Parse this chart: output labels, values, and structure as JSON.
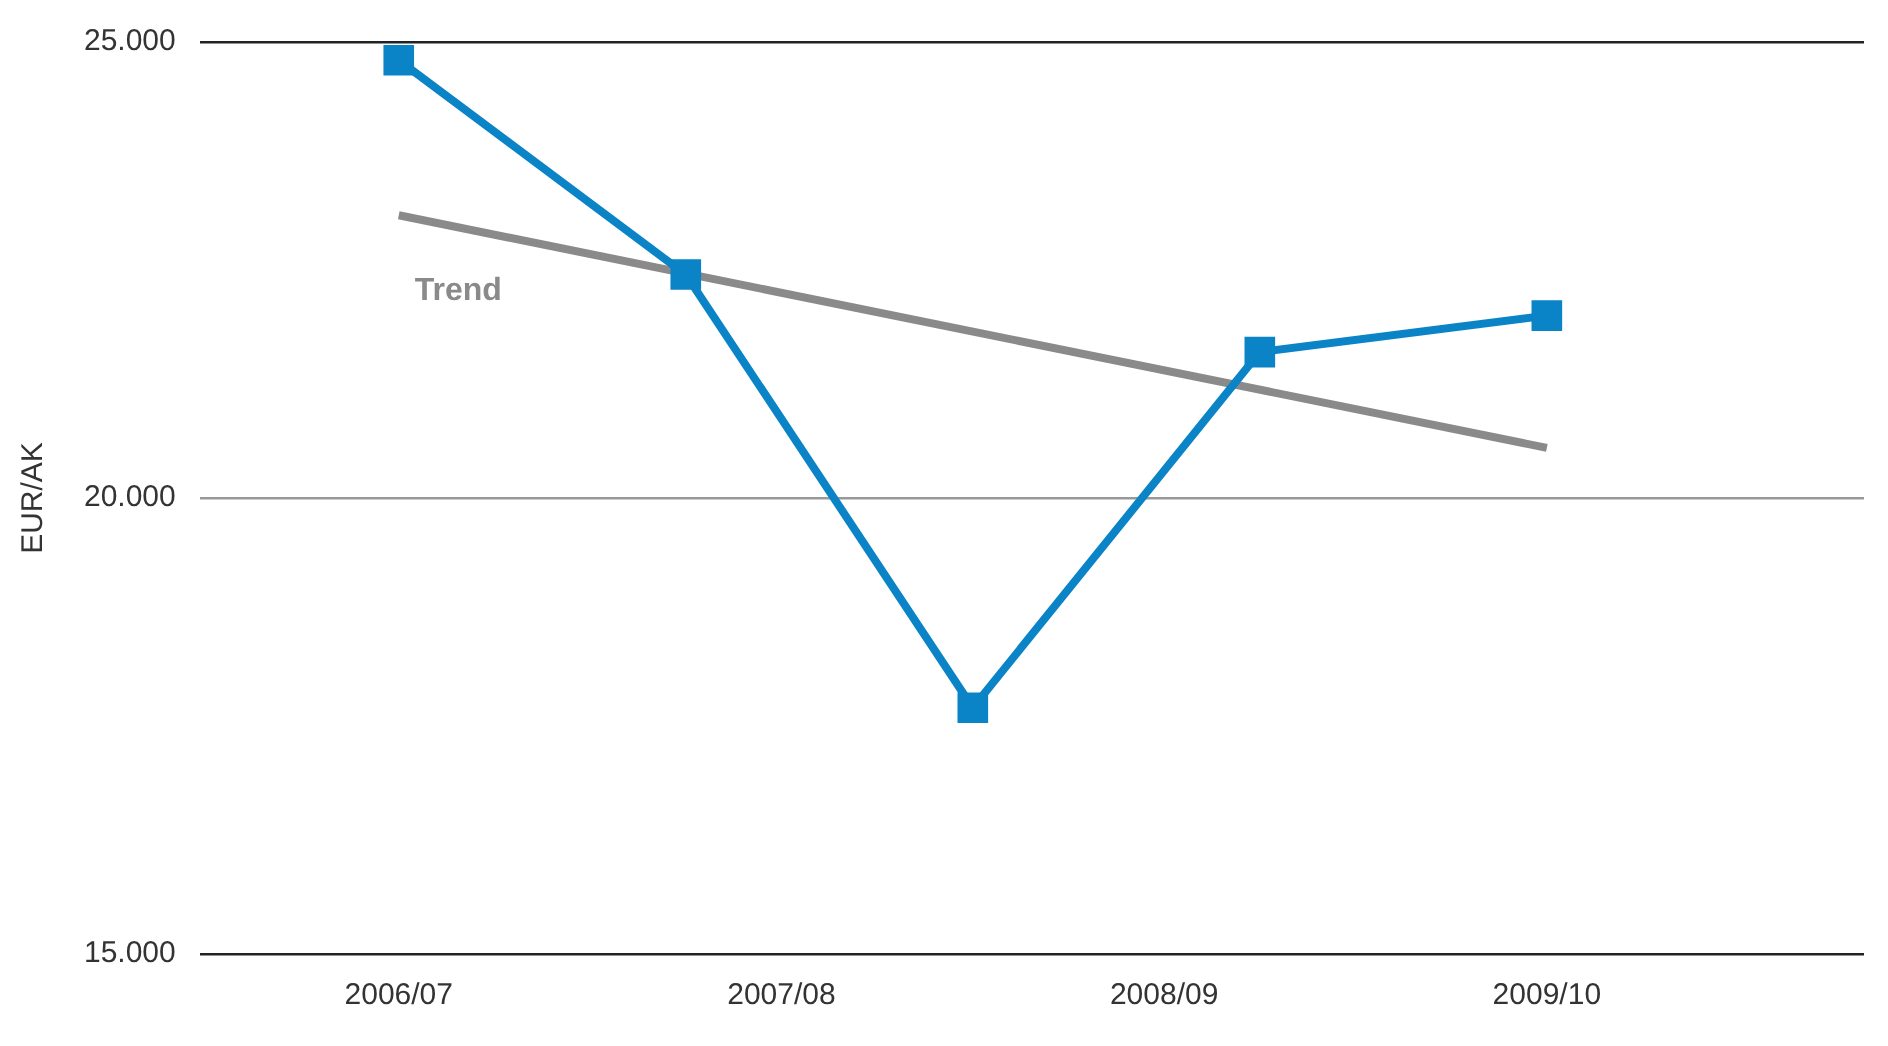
{
  "chart_data": {
    "type": "line",
    "ylabel": "EUR/AK",
    "categories": [
      "2006/07",
      null,
      null,
      null,
      "2007/08",
      null,
      null,
      null,
      "2008/09",
      null,
      null,
      null,
      "2009/10"
    ],
    "ylim": [
      15000,
      25000
    ],
    "yticks": [
      {
        "value": 15000,
        "label": "15.000"
      },
      {
        "value": 20000,
        "label": "20.000"
      },
      {
        "value": 25000,
        "label": "25.000"
      }
    ],
    "grid": "y",
    "legend": false,
    "series": [
      {
        "color": "#0a84c6",
        "marker": "square",
        "values": [
          24800,
          null,
          null,
          22450,
          null,
          null,
          17700,
          null,
          null,
          21600,
          null,
          null,
          22000
        ]
      },
      {
        "name": "Trend",
        "color": "#8a8a8a",
        "marker": "none",
        "values": [
          23100,
          null,
          null,
          null,
          null,
          null,
          null,
          null,
          null,
          null,
          null,
          null,
          20550
        ]
      }
    ]
  }
}
